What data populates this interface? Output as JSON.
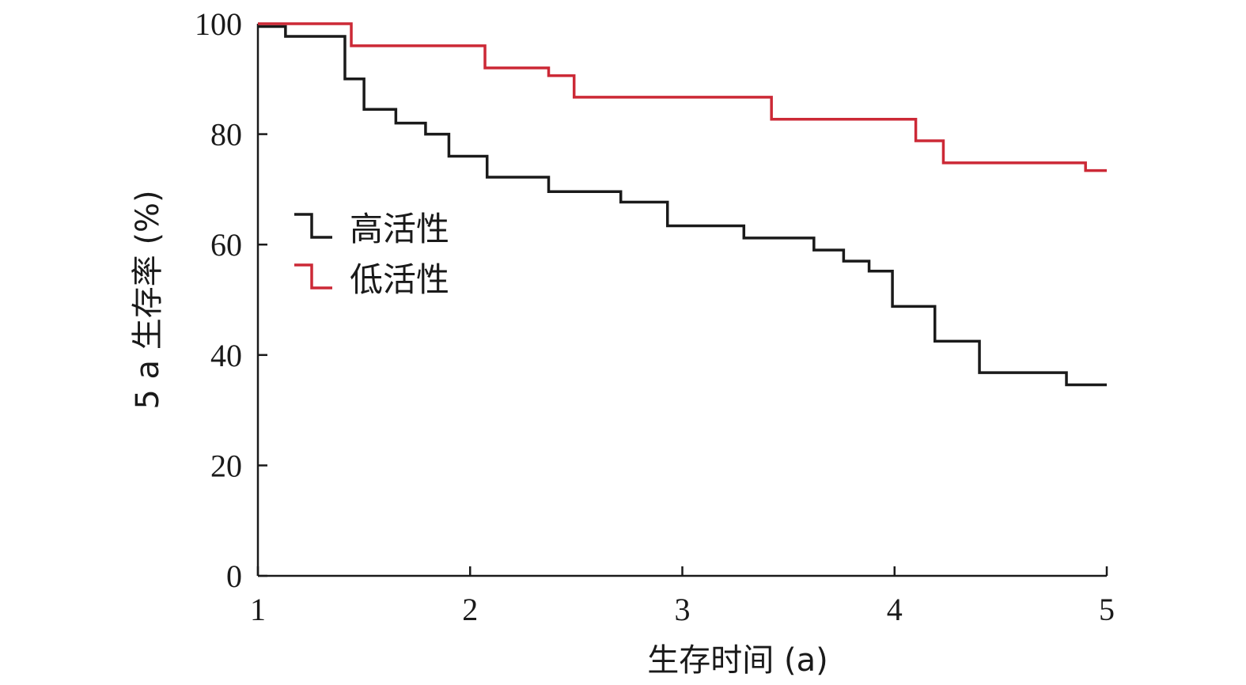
{
  "chart_data": {
    "type": "line",
    "subtype": "step",
    "xlabel": "生存时间 (a)",
    "ylabel": "5 a 生存率 (%)",
    "xlim": [
      1,
      5
    ],
    "ylim": [
      0,
      100
    ],
    "x_ticks": [
      "1",
      "2",
      "3",
      "4",
      "5"
    ],
    "y_ticks": [
      "0",
      "20",
      "40",
      "60",
      "80",
      "100"
    ],
    "grid": false,
    "legend": "center-left",
    "series": [
      {
        "name": "高活性",
        "color": "#1a1a1a",
        "points": [
          [
            1.0,
            99.5
          ],
          [
            1.13,
            97.7
          ],
          [
            1.41,
            90.0
          ],
          [
            1.5,
            84.5
          ],
          [
            1.65,
            82.0
          ],
          [
            1.79,
            80.0
          ],
          [
            1.9,
            76.0
          ],
          [
            2.08,
            72.2
          ],
          [
            2.37,
            69.6
          ],
          [
            2.71,
            67.7
          ],
          [
            2.93,
            63.4
          ],
          [
            3.29,
            61.2
          ],
          [
            3.62,
            59.0
          ],
          [
            3.76,
            57.0
          ],
          [
            3.88,
            55.2
          ],
          [
            3.99,
            48.8
          ],
          [
            4.19,
            42.5
          ],
          [
            4.4,
            36.8
          ],
          [
            4.81,
            34.6
          ],
          [
            5.0,
            34.6
          ]
        ]
      },
      {
        "name": "低活性",
        "color": "#cc2936",
        "points": [
          [
            1.0,
            100.0
          ],
          [
            1.44,
            96.0
          ],
          [
            2.07,
            92.0
          ],
          [
            2.37,
            90.6
          ],
          [
            2.49,
            86.7
          ],
          [
            3.42,
            82.7
          ],
          [
            4.1,
            78.8
          ],
          [
            4.23,
            74.8
          ],
          [
            4.9,
            73.4
          ],
          [
            5.0,
            73.4
          ]
        ]
      }
    ]
  }
}
